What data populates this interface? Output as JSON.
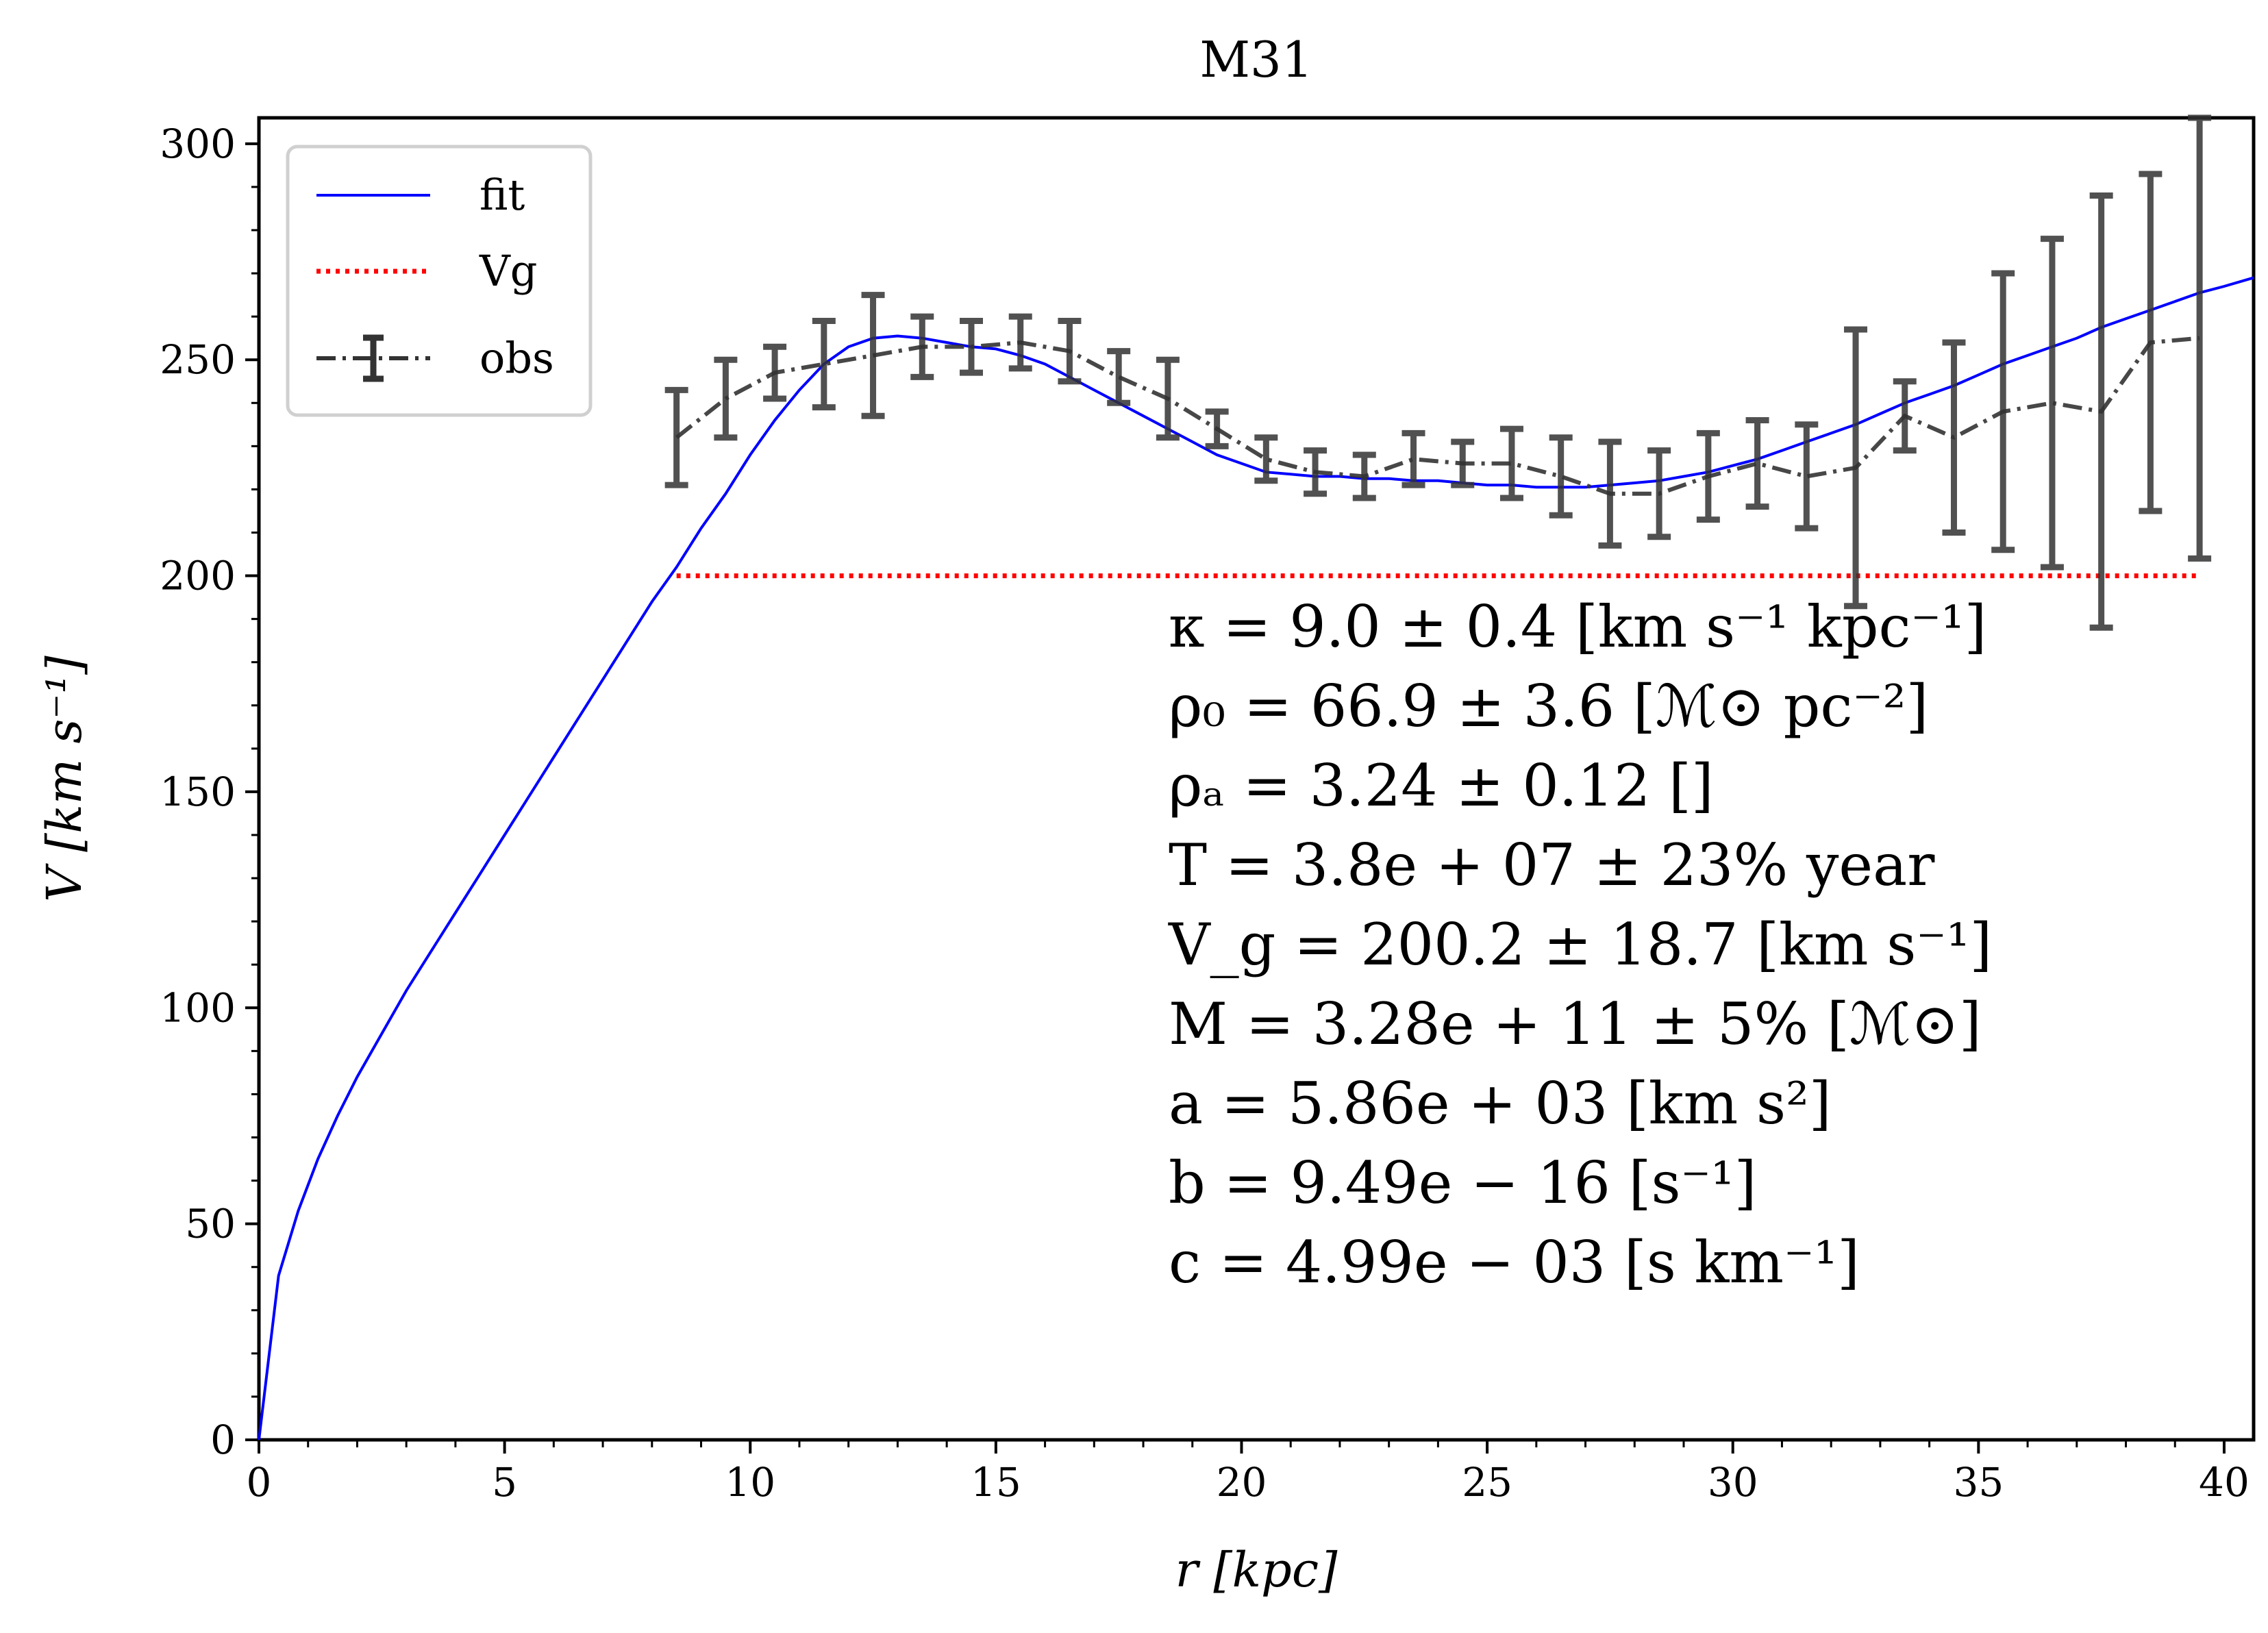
{
  "chart_data": {
    "type": "line",
    "title": "M31",
    "xlabel": "r [kpc]",
    "ylabel": "V [km s⁻¹]",
    "xlim": [
      0,
      40.6
    ],
    "ylim": [
      0,
      306
    ],
    "x_ticks": [
      0,
      5,
      10,
      15,
      20,
      25,
      30,
      35,
      40
    ],
    "y_ticks": [
      0,
      50,
      100,
      150,
      200,
      250,
      300
    ],
    "grid": false,
    "legend": {
      "placement": "top-left",
      "entries": [
        "fit",
        "Vg",
        "obs"
      ]
    },
    "colors": {
      "fit": "#0000ff",
      "Vg": "#ff0000",
      "obs": "#333333"
    },
    "series": [
      {
        "name": "fit",
        "style": "solid",
        "x": [
          0,
          0.4,
          0.8,
          1.2,
          1.6,
          2,
          2.5,
          3,
          3.5,
          4,
          4.5,
          5,
          5.5,
          6,
          6.5,
          7,
          7.5,
          8,
          8.5,
          9,
          9.5,
          10,
          10.5,
          11,
          11.5,
          12,
          12.5,
          13,
          13.5,
          14,
          14.5,
          15,
          15.5,
          16,
          16.5,
          17,
          17.5,
          18,
          18.5,
          19,
          19.5,
          20,
          20.5,
          21,
          21.5,
          22,
          22.5,
          23,
          23.5,
          24,
          24.5,
          25,
          25.5,
          26,
          26.5,
          27,
          27.5,
          28,
          28.5,
          29,
          29.5,
          30,
          30.5,
          31,
          31.5,
          32,
          32.5,
          33,
          33.5,
          34,
          34.5,
          35,
          35.5,
          36,
          36.5,
          37,
          37.5,
          38,
          38.5,
          39,
          39.5,
          40,
          40.6
        ],
        "values": [
          0,
          38,
          53,
          65,
          75,
          84,
          94,
          104,
          113,
          122,
          131,
          140,
          149,
          158,
          167,
          176,
          185,
          194,
          202,
          211,
          219,
          228,
          236,
          243,
          249,
          253,
          255,
          255.5,
          255,
          254,
          253,
          252.5,
          251,
          249,
          246,
          243,
          240,
          237,
          234,
          231,
          228,
          226,
          224,
          223.5,
          223,
          223,
          222.5,
          222.5,
          222,
          222,
          221.5,
          221,
          221,
          220.5,
          220.5,
          220.5,
          221,
          221.5,
          222,
          223,
          224,
          225.5,
          227,
          229,
          231,
          233,
          235,
          237.5,
          240,
          242,
          244,
          246.5,
          249,
          251,
          253,
          255,
          257.5,
          259.5,
          261.5,
          263.5,
          265.5,
          267,
          269
        ]
      },
      {
        "name": "Vg",
        "style": "dotted",
        "x": [
          8.5,
          39.5
        ],
        "values": [
          200,
          200
        ]
      },
      {
        "name": "obs",
        "style": "dashdot",
        "x": [
          8.5,
          9.5,
          10.5,
          11.5,
          12.5,
          13.5,
          14.5,
          15.5,
          16.5,
          17.5,
          18.5,
          19.5,
          20.5,
          21.5,
          22.5,
          23.5,
          24.5,
          25.5,
          26.5,
          27.5,
          28.5,
          29.5,
          30.5,
          31.5,
          32.5,
          33.5,
          34.5,
          35.5,
          36.5,
          37.5,
          38.5,
          39.5
        ],
        "values": [
          232,
          241,
          247,
          249,
          251,
          253,
          253,
          254,
          252,
          246,
          241,
          234,
          227,
          224,
          223,
          227,
          226,
          226,
          223,
          219,
          219,
          223,
          226,
          223,
          225,
          237,
          232,
          238,
          240,
          238,
          254,
          255
        ],
        "errors": [
          11,
          9,
          6,
          10,
          14,
          7,
          6,
          6,
          7,
          6,
          9,
          4,
          5,
          5,
          5,
          6,
          5,
          8,
          9,
          12,
          10,
          10,
          10,
          12,
          32,
          8,
          22,
          32,
          38,
          50,
          39,
          51
        ]
      }
    ],
    "annotations": [
      "κ = 9.0 ± 0.4 [km s⁻¹ kpc⁻¹]",
      "ρ₀ = 66.9 ± 3.6 [ℳ⊙ pc⁻²]",
      "ρₐ = 3.24 ± 0.12 []",
      "T = 3.8e + 07 ± 23% year",
      "V_g = 200.2 ± 18.7 [km s⁻¹]",
      "M = 3.28e + 11 ± 5% [ℳ⊙]",
      "a = 5.86e + 03 [km s²]",
      "b = 9.49e − 16 [s⁻¹]",
      "c = 4.99e − 03 [s km⁻¹]"
    ]
  }
}
